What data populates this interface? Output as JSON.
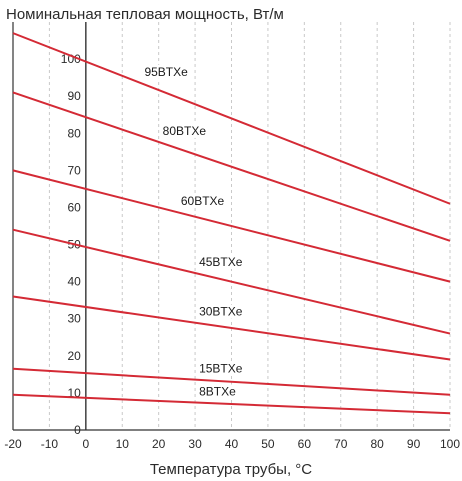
{
  "chart_data": {
    "type": "line",
    "title": "",
    "ylabel": "Номинальная тепловая мощность, Вт/м",
    "xlabel": "Температура трубы, °C",
    "xlim": [
      -20,
      100
    ],
    "ylim": [
      0,
      110
    ],
    "x_ticks": [
      -20,
      -10,
      0,
      10,
      20,
      30,
      40,
      50,
      60,
      70,
      80,
      90,
      100
    ],
    "y_ticks": [
      0,
      10,
      20,
      30,
      40,
      50,
      60,
      70,
      80,
      90,
      100
    ],
    "grid": "vertical",
    "line_color": "#d42a35",
    "series": [
      {
        "name": "95BTXe",
        "x": [
          -20,
          100
        ],
        "y": [
          107,
          61
        ],
        "label_x": 15
      },
      {
        "name": "80BTXe",
        "x": [
          -20,
          100
        ],
        "y": [
          91,
          51
        ],
        "label_x": 20
      },
      {
        "name": "60BTXe",
        "x": [
          -20,
          100
        ],
        "y": [
          70,
          40
        ],
        "label_x": 25
      },
      {
        "name": "45BTXe",
        "x": [
          -20,
          100
        ],
        "y": [
          54,
          26
        ],
        "label_x": 30
      },
      {
        "name": "30BTXe",
        "x": [
          -20,
          100
        ],
        "y": [
          36,
          19
        ],
        "label_x": 30
      },
      {
        "name": "15BTXe",
        "x": [
          -20,
          100
        ],
        "y": [
          16.5,
          9.5
        ],
        "label_x": 30
      },
      {
        "name": "8BTXe",
        "x": [
          -20,
          100
        ],
        "y": [
          9.5,
          4.5
        ],
        "label_x": 30
      }
    ]
  }
}
